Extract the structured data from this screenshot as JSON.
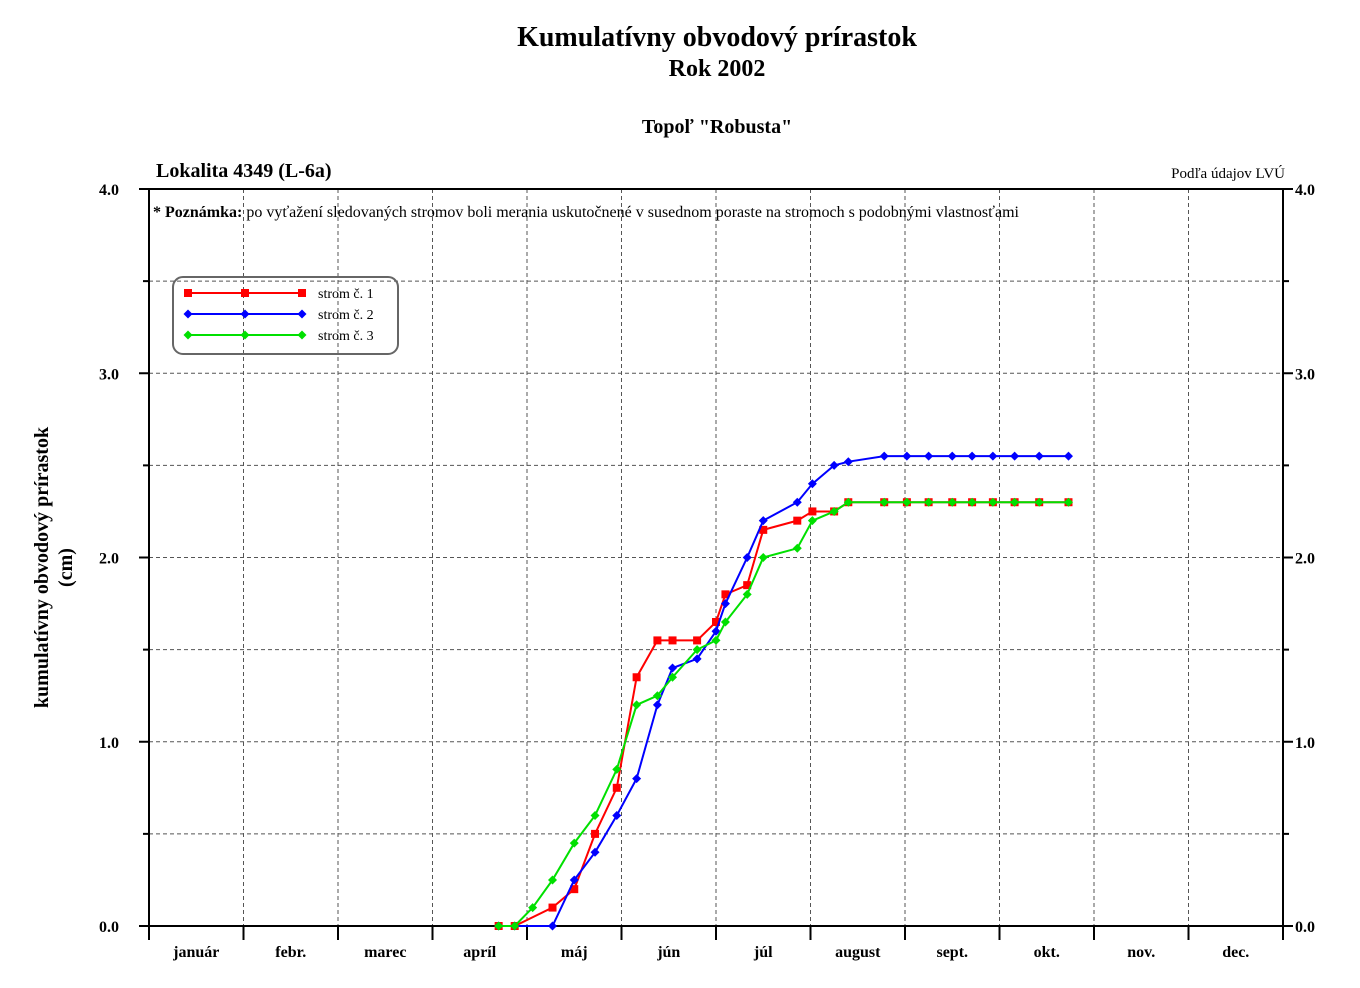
{
  "header": {
    "title": "Kumulatívny obvodový prírastok",
    "subtitle": "Rok 2002",
    "species": "Topoľ \"Robusta\"",
    "location": "Lokalita 4349 (L-6a)",
    "source": "Podľa údajov LVÚ"
  },
  "chart_data": {
    "type": "line",
    "ylabel": "kumulatívny obvodový prírastok",
    "ylabel_unit": "(cm)",
    "note_bold": "* Poznámka:",
    "note": "po vyťažení sledovaných stromov boli merania uskutočnené v susednom poraste na stromoch s podobnými vlastnosťami",
    "ylim": [
      0,
      4
    ],
    "yticks": [
      "0.0",
      "1.0",
      "2.0",
      "3.0",
      "4.0"
    ],
    "grid": true,
    "legend_position": "top-left",
    "months": [
      "január",
      "febr.",
      "marec",
      "apríl",
      "máj",
      "jún",
      "júl",
      "august",
      "sept.",
      "okt.",
      "nov.",
      "dec."
    ],
    "x_unit": "months from 1 January (0 = 1 Jan, 12 = 31 Dec)",
    "series": [
      {
        "name": "strom č. 1",
        "color": "#ff0000",
        "marker": "square",
        "x": [
          3.7,
          3.87,
          4.27,
          4.5,
          4.72,
          4.95,
          5.16,
          5.38,
          5.54,
          5.8,
          6.0,
          6.1,
          6.33,
          6.5,
          6.86,
          7.02,
          7.25,
          7.4,
          7.78,
          8.02,
          8.25,
          8.5,
          8.71,
          8.93,
          9.16,
          9.42,
          9.73
        ],
        "values": [
          0.0,
          0.0,
          0.1,
          0.2,
          0.5,
          0.75,
          1.35,
          1.55,
          1.55,
          1.55,
          1.65,
          1.8,
          1.85,
          2.15,
          2.2,
          2.25,
          2.25,
          2.3,
          2.3,
          2.3,
          2.3,
          2.3,
          2.3,
          2.3,
          2.3,
          2.3,
          2.3
        ]
      },
      {
        "name": "strom č. 2",
        "color": "#0000ff",
        "marker": "diamond",
        "x": [
          3.7,
          3.87,
          4.27,
          4.5,
          4.72,
          4.95,
          5.16,
          5.38,
          5.54,
          5.8,
          6.0,
          6.1,
          6.33,
          6.5,
          6.86,
          7.02,
          7.25,
          7.4,
          7.78,
          8.02,
          8.25,
          8.5,
          8.71,
          8.93,
          9.16,
          9.42,
          9.73
        ],
        "values": [
          0.0,
          0.0,
          0.0,
          0.25,
          0.4,
          0.6,
          0.8,
          1.2,
          1.4,
          1.45,
          1.6,
          1.75,
          2.0,
          2.2,
          2.3,
          2.4,
          2.5,
          2.52,
          2.55,
          2.55,
          2.55,
          2.55,
          2.55,
          2.55,
          2.55,
          2.55,
          2.55
        ]
      },
      {
        "name": "strom č. 3",
        "color": "#00e000",
        "marker": "diamond",
        "x": [
          3.7,
          3.87,
          4.06,
          4.27,
          4.5,
          4.72,
          4.95,
          5.16,
          5.38,
          5.54,
          5.8,
          6.0,
          6.1,
          6.33,
          6.5,
          6.86,
          7.02,
          7.25,
          7.4,
          7.78,
          8.02,
          8.25,
          8.5,
          8.71,
          8.93,
          9.16,
          9.42,
          9.73
        ],
        "values": [
          0.0,
          0.0,
          0.1,
          0.25,
          0.45,
          0.6,
          0.85,
          1.2,
          1.25,
          1.35,
          1.5,
          1.55,
          1.65,
          1.8,
          2.0,
          2.05,
          2.2,
          2.25,
          2.3,
          2.3,
          2.3,
          2.3,
          2.3,
          2.3,
          2.3,
          2.3,
          2.3,
          2.3
        ]
      }
    ]
  }
}
